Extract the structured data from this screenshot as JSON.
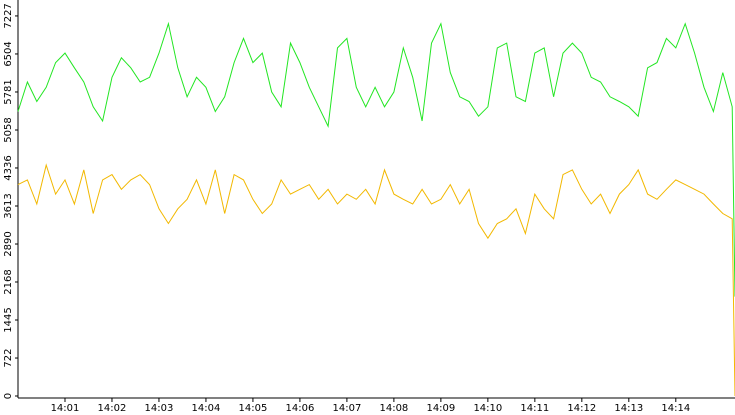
{
  "chart_data": {
    "type": "line",
    "x": [
      0,
      0.2,
      0.4,
      0.6,
      0.8,
      1,
      1.2,
      1.4,
      1.6,
      1.8,
      2,
      2.2,
      2.4,
      2.6,
      2.8,
      3,
      3.2,
      3.4,
      3.6,
      3.8,
      4,
      4.2,
      4.4,
      4.6,
      4.8,
      5,
      5.2,
      5.4,
      5.6,
      5.8,
      6,
      6.2,
      6.4,
      6.6,
      6.8,
      7,
      7.2,
      7.4,
      7.6,
      7.8,
      8,
      8.2,
      8.4,
      8.6,
      8.8,
      9,
      9.2,
      9.4,
      9.6,
      9.8,
      10,
      10.2,
      10.4,
      10.6,
      10.8,
      11,
      11.2,
      11.4,
      11.6,
      11.8,
      12,
      12.2,
      12.4,
      12.6,
      12.8,
      13,
      13.2,
      13.4,
      13.6,
      13.8,
      14,
      14.2,
      14.4,
      14.6,
      14.8,
      15,
      15.2,
      15.26
    ],
    "series": [
      {
        "color": "#22e622",
        "values": [
          5410,
          5970,
          5600,
          5870,
          6340,
          6520,
          6240,
          5970,
          5500,
          5230,
          6060,
          6430,
          6240,
          5970,
          6060,
          6520,
          7080,
          6240,
          5690,
          6060,
          5870,
          5410,
          5690,
          6340,
          6800,
          6340,
          6520,
          5780,
          5500,
          6710,
          6340,
          5870,
          5500,
          5130,
          6620,
          6800,
          5870,
          5500,
          5870,
          5500,
          5780,
          6620,
          6060,
          5230,
          6710,
          7080,
          6150,
          5690,
          5600,
          5320,
          5500,
          6620,
          6710,
          5690,
          5600,
          6520,
          6620,
          5690,
          6520,
          6710,
          6520,
          6060,
          5970,
          5690,
          5600,
          5500,
          5320,
          6240,
          6340,
          6800,
          6620,
          7080,
          6520,
          5870,
          5410,
          6150,
          5500,
          1890
        ]
      },
      {
        "color": "#f2b800",
        "values": [
          4020,
          4110,
          3650,
          4390,
          3840,
          4110,
          3650,
          4300,
          3470,
          4110,
          4210,
          3930,
          4110,
          4210,
          4020,
          3560,
          3280,
          3560,
          3740,
          4110,
          3650,
          4300,
          3470,
          4210,
          4110,
          3740,
          3470,
          3650,
          4110,
          3840,
          3930,
          4020,
          3740,
          3930,
          3650,
          3840,
          3740,
          3930,
          3650,
          4300,
          3840,
          3740,
          3650,
          3930,
          3650,
          3740,
          4020,
          3650,
          3930,
          3280,
          3000,
          3280,
          3370,
          3560,
          3090,
          3840,
          3560,
          3370,
          4210,
          4300,
          3930,
          3650,
          3840,
          3470,
          3840,
          4020,
          4300,
          3840,
          3740,
          3930,
          4110,
          4020,
          3930,
          3840,
          3650,
          3470,
          3370,
          0
        ]
      }
    ],
    "xlim": [
      0,
      15.26
    ],
    "xticks": [
      {
        "value": 1,
        "label": "14:01"
      },
      {
        "value": 2,
        "label": "14:02"
      },
      {
        "value": 3,
        "label": "14:03"
      },
      {
        "value": 4,
        "label": "14:04"
      },
      {
        "value": 5,
        "label": "14:05"
      },
      {
        "value": 6,
        "label": "14:06"
      },
      {
        "value": 7,
        "label": "14:07"
      },
      {
        "value": 8,
        "label": "14:08"
      },
      {
        "value": 9,
        "label": "14:09"
      },
      {
        "value": 10,
        "label": "14:10"
      },
      {
        "value": 11,
        "label": "14:11"
      },
      {
        "value": 12,
        "label": "14:12"
      },
      {
        "value": 13,
        "label": "14:13"
      },
      {
        "value": 14,
        "label": "14:14"
      }
    ],
    "ylim": [
      0,
      7530
    ],
    "yticks": [
      0,
      722,
      1445,
      2168,
      2890,
      3613,
      4336,
      5058,
      5781,
      6504,
      7227
    ]
  }
}
